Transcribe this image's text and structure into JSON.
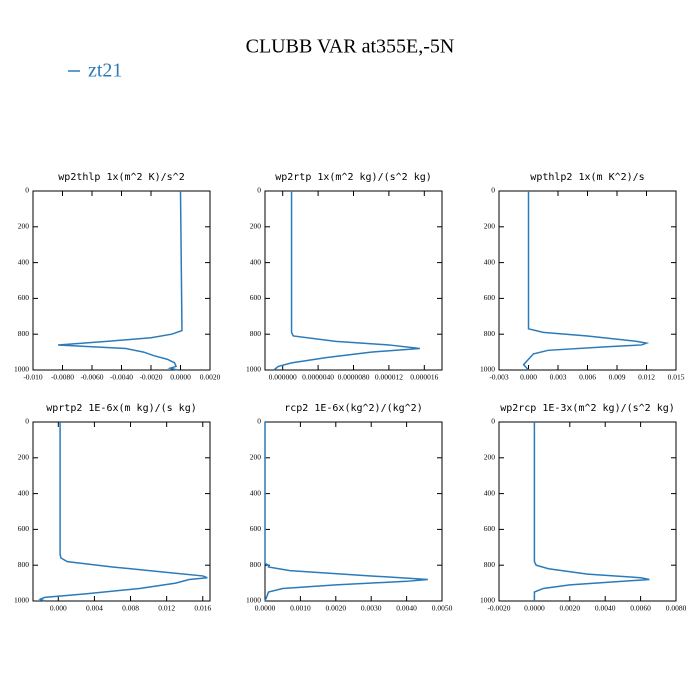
{
  "title": "CLUBB VAR at355E,-5N",
  "legend": {
    "name": "zt21",
    "color": "#2b7bba"
  },
  "chart_data": [
    {
      "type": "line",
      "title": "wp2thlp  1x(m^2 K)/s^2",
      "xlim": [
        -0.01,
        0.002
      ],
      "xticks": [
        {
          "value": -0.01,
          "label": "-0.010"
        },
        {
          "value": -0.008,
          "label": "-0.0080"
        },
        {
          "value": -0.006,
          "label": "-0.0060"
        },
        {
          "value": -0.004,
          "label": "-0.0040"
        },
        {
          "value": -0.002,
          "label": "-0.0020"
        },
        {
          "value": 0,
          "label": "0.0000"
        },
        {
          "value": 0.002,
          "label": "0.0020"
        }
      ],
      "ylim": [
        1000,
        0
      ],
      "yticks": [
        0,
        200,
        400,
        600,
        800,
        1000
      ],
      "y": [
        0,
        780,
        800,
        820,
        840,
        860,
        870,
        880,
        900,
        920,
        940,
        960,
        980,
        990,
        1000
      ],
      "series": [
        {
          "color": "#2b7bba",
          "values": [
            0,
            0.0001,
            -0.0006,
            -0.002,
            -0.005,
            -0.0083,
            -0.006,
            -0.0037,
            -0.0025,
            -0.0018,
            -0.0009,
            -0.0004,
            -0.0003,
            -0.0007,
            -0.0002
          ]
        }
      ]
    },
    {
      "type": "line",
      "title": "wp2rtp  1x(m^2 kg)/(s^2 kg)",
      "xlim": [
        -2e-06,
        1.8e-05
      ],
      "xticks": [
        {
          "value": 0,
          "label": "0.000000"
        },
        {
          "value": 4e-06,
          "label": "0.0000040"
        },
        {
          "value": 8e-06,
          "label": "0.0000080"
        },
        1.2e-05,
        1.6e-05
      ],
      "ylim": [
        1000,
        0
      ],
      "yticks": [
        0,
        200,
        400,
        600,
        800,
        1000
      ],
      "y": [
        0,
        790,
        810,
        840,
        860,
        880,
        900,
        930,
        960,
        980,
        1000
      ],
      "series": [
        {
          "color": "#2b7bba",
          "values": [
            1e-06,
            1e-06,
            1.2e-06,
            6e-06,
            1.2e-05,
            1.55e-05,
            1e-05,
            5e-06,
            1e-06,
            -5e-07,
            -1e-06
          ]
        }
      ]
    },
    {
      "type": "line",
      "title": "wpthlp2  1x(m K^2)/s",
      "xlim": [
        -0.003,
        0.015
      ],
      "xticks": [
        -0.003,
        {
          "value": 0,
          "label": "0.000"
        },
        0.003,
        0.006,
        0.009,
        0.012,
        0.015
      ],
      "ylim": [
        1000,
        0
      ],
      "yticks": [
        0,
        200,
        400,
        600,
        800,
        1000
      ],
      "y": [
        0,
        770,
        790,
        810,
        840,
        850,
        860,
        870,
        890,
        910,
        940,
        970,
        1000
      ],
      "series": [
        {
          "color": "#2b7bba",
          "values": [
            0,
            0,
            0.0015,
            0.006,
            0.011,
            0.012,
            0.0115,
            0.008,
            0.002,
            0.0005,
            0,
            -0.0005,
            0
          ]
        }
      ]
    },
    {
      "type": "line",
      "title": "wprtp2  1E-6x(m kg)/(s kg)",
      "xlim": [
        -0.0028,
        0.0168
      ],
      "xticks": [
        {
          "value": 0,
          "label": "0.000"
        },
        0.004,
        0.008,
        0.012,
        0.016
      ],
      "ylim": [
        1000,
        0
      ],
      "yticks": [
        0,
        200,
        400,
        600,
        800,
        1000
      ],
      "y": [
        0,
        740,
        760,
        780,
        810,
        840,
        860,
        870,
        880,
        900,
        930,
        960,
        980,
        990,
        1000
      ],
      "series": [
        {
          "color": "#2b7bba",
          "values": [
            0.0002,
            0.0002,
            0.0003,
            0.001,
            0.006,
            0.012,
            0.016,
            0.0165,
            0.0145,
            0.013,
            0.009,
            0.003,
            -0.0015,
            -0.002,
            -0.0015
          ]
        }
      ]
    },
    {
      "type": "line",
      "title": "rcp2  1E-6x(kg^2)/(kg^2)",
      "xlim": [
        0,
        0.005
      ],
      "xticks": [
        {
          "value": 0,
          "label": "0.0000"
        },
        {
          "value": 0.001,
          "label": "0.0010"
        },
        {
          "value": 0.002,
          "label": "0.0020"
        },
        {
          "value": 0.003,
          "label": "0.0030"
        },
        {
          "value": 0.004,
          "label": "0.0040"
        },
        {
          "value": 0.005,
          "label": "0.0050"
        }
      ],
      "ylim": [
        1000,
        0
      ],
      "yticks": [
        0,
        200,
        400,
        600,
        800,
        1000
      ],
      "y": [
        0,
        790,
        800,
        810,
        830,
        860,
        880,
        890,
        910,
        930,
        950,
        1000
      ],
      "series": [
        {
          "color": "#2b7bba",
          "values": [
            0,
            0,
            0.0001,
            0.0001,
            0.0007,
            0.003,
            0.0046,
            0.004,
            0.002,
            0.0005,
            0.0001,
            0
          ]
        }
      ]
    },
    {
      "type": "line",
      "title": "wp2rcp  1E-3x(m^2 kg)/(s^2 kg)",
      "xlim": [
        -0.002,
        0.008
      ],
      "xticks": [
        {
          "value": -0.002,
          "label": "-0.0020"
        },
        {
          "value": 0,
          "label": "0.0000"
        },
        {
          "value": 0.002,
          "label": "0.0020"
        },
        {
          "value": 0.004,
          "label": "0.0040"
        },
        {
          "value": 0.006,
          "label": "0.0060"
        },
        {
          "value": 0.008,
          "label": "0.0080"
        }
      ],
      "ylim": [
        1000,
        0
      ],
      "yticks": [
        0,
        200,
        400,
        600,
        800,
        1000
      ],
      "y": [
        0,
        780,
        800,
        820,
        850,
        870,
        880,
        890,
        910,
        930,
        950,
        1000
      ],
      "series": [
        {
          "color": "#2b7bba",
          "values": [
            0,
            0,
            0.0001,
            0.0008,
            0.003,
            0.006,
            0.0065,
            0.005,
            0.002,
            0.0005,
            0,
            0
          ]
        }
      ]
    }
  ]
}
